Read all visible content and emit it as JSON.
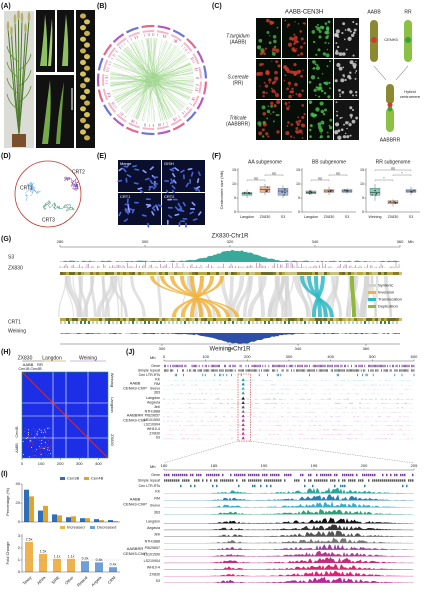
{
  "panel_a": {
    "label": "(A)"
  },
  "panel_b": {
    "label": "(B)"
  },
  "panel_c": {
    "label": "(C)",
    "title": "AABB-CEN3H",
    "rows": [
      [
        "T.turgidum",
        "(AABB)"
      ],
      [
        "S.cereale",
        "(RR)"
      ],
      [
        "Triticale",
        "(AABBRR)"
      ]
    ],
    "diagram": {
      "left": "AABB",
      "right": "RR",
      "protein": "CENH3",
      "hybrid": [
        "Hybrid",
        "centromere"
      ],
      "bottom": "AABBRR"
    }
  },
  "panel_d": {
    "label": "(D)",
    "clusters": [
      "CRT2",
      "CRT1",
      "CRT3"
    ]
  },
  "panel_e": {
    "label": "(E)",
    "images": [
      "Merge",
      "GISH",
      "CRT1",
      "CRT2"
    ]
  },
  "panel_f": {
    "label": "(F)",
    "type": "box",
    "y_label": "Centromere size (Mb)",
    "ylim": [
      0,
      15
    ],
    "yticks": [
      0,
      5,
      10,
      15
    ],
    "subplots": [
      {
        "title": "AA subgenome",
        "categories": [
          "Langdon",
          "ZX830",
          "S3"
        ],
        "colors": [
          "#6fc3ad",
          "#f0a47b",
          "#8ea6d8"
        ],
        "boxes": [
          [
            5,
            6,
            6.5,
            7,
            8
          ],
          [
            6,
            7,
            8,
            9,
            10
          ],
          [
            5,
            6,
            7.5,
            8.5,
            9.5
          ]
        ],
        "tests": [
          "ns",
          "ns"
        ]
      },
      {
        "title": "BB subgenome",
        "categories": [
          "Langdon",
          "ZX830",
          "S3"
        ],
        "colors": [
          "#6fc3ad",
          "#f0a47b",
          "#8ea6d8"
        ],
        "boxes": [
          [
            6,
            6.5,
            7,
            7.5,
            8
          ],
          [
            6,
            7,
            7.5,
            8,
            9
          ],
          [
            6.5,
            7,
            7.5,
            8,
            8.5
          ]
        ],
        "tests": [
          "ns",
          "ns"
        ]
      },
      {
        "title": "RR subgenome",
        "categories": [
          "Weining",
          "ZX830",
          "S3"
        ],
        "colors": [
          "#6fc3ad",
          "#f0a47b",
          "#8ea6d8"
        ],
        "boxes": [
          [
            4,
            6,
            7,
            8.5,
            10
          ],
          [
            2,
            3,
            3.5,
            4,
            4.5
          ],
          [
            6,
            7,
            7.5,
            8,
            9
          ]
        ],
        "tests": [
          "*",
          "*",
          "ns"
        ]
      }
    ]
  },
  "panel_g": {
    "label": "(G)",
    "title": "ZX830-Chr1R",
    "bottom_title": "Weining-Chr1R",
    "unit": "Mb",
    "xlim": [
      280,
      360
    ],
    "xticks": [
      280,
      300,
      320,
      340,
      360
    ],
    "bottom_xlim": [
      270,
      370
    ],
    "bottom_xticks": [
      300,
      320,
      340,
      360
    ],
    "tracks": [
      "S3",
      "ZX830",
      "CRT1",
      "Weining"
    ],
    "legend": [
      {
        "name": "Syntenic",
        "color": "#d4d4d4"
      },
      {
        "name": "Inversion",
        "color": "#f2b33d"
      },
      {
        "name": "Translocation",
        "color": "#2fb8c6"
      },
      {
        "name": "Duplication",
        "color": "#8fb83c"
      }
    ]
  },
  "panel_h": {
    "label": "(H)",
    "top": [
      "ZX830",
      "Langdon",
      "Weining"
    ],
    "sub": [
      "AABB",
      "RR"
    ],
    "cen": [
      "Cen1B",
      "Cen4B"
    ],
    "right": [
      "Weining",
      "Langdon",
      "ZX830"
    ],
    "right_sub": [
      "Cen4B",
      "AABB"
    ],
    "xlim": [
      0,
      450
    ],
    "xticks": [
      0,
      100,
      200,
      300,
      400
    ]
  },
  "panel_i": {
    "label": "(I)",
    "categories": [
      "Tekay",
      "Athila",
      "SIRE",
      "Other",
      "Retand",
      "Angela",
      "CRM"
    ],
    "percentage": {
      "type": "bar",
      "y_label": "Percentage (%)",
      "ylim": [
        0,
        40
      ],
      "yticks": [
        0,
        20,
        40
      ],
      "series": [
        {
          "name": "Cen3B",
          "color": "#2e6fb7",
          "values": [
            34,
            12,
            8,
            5,
            4,
            3,
            2
          ]
        },
        {
          "name": "Cen4B",
          "color": "#e0a526",
          "values": [
            27,
            17,
            7,
            6,
            4,
            2,
            1
          ]
        }
      ]
    },
    "fold_change": {
      "type": "bar",
      "y_label": "Fold Change",
      "ylim": [
        0,
        3
      ],
      "yticks": [
        0,
        1,
        2,
        3
      ],
      "values": [
        2.5,
        1.5,
        1.1,
        1.1,
        0.9,
        0.8,
        0.4
      ],
      "value_labels": [
        "2.5x",
        "1.5x",
        "1.1x",
        "1.1x",
        "0.9x",
        "0.8x",
        "0.4x"
      ],
      "legend": [
        {
          "name": "Increased",
          "color": "#f0b24a"
        },
        {
          "name": "Decreased",
          "color": "#6e9fd6"
        }
      ]
    }
  },
  "panel_j": {
    "label": "(J)",
    "unit": "Mb",
    "xlim": [
      0,
      600
    ],
    "xticks": [
      0,
      100,
      200,
      300,
      400,
      500,
      600
    ],
    "zoom_xlim": [
      180,
      205
    ],
    "zoom_xticks": [
      180,
      185,
      190,
      195,
      200,
      205
    ],
    "features": [
      "Gene",
      "Simple repeat",
      "Cen LTR-RTs"
    ],
    "groups": [
      {
        "name": [
          "AABB",
          "CENH3-ChIP"
        ],
        "samples": [
          "KK",
          "RM",
          "Svevo",
          "363"
        ]
      },
      {
        "name": [
          "AABBRR",
          "CENH3-ChIP"
        ],
        "samples": [
          "Langdon",
          "Aegavia",
          "Jinli",
          "NTH1888",
          "PI629657",
          "LS101590",
          "LS210904",
          "WH10-4",
          "ZX830",
          "S3"
        ]
      }
    ]
  }
}
